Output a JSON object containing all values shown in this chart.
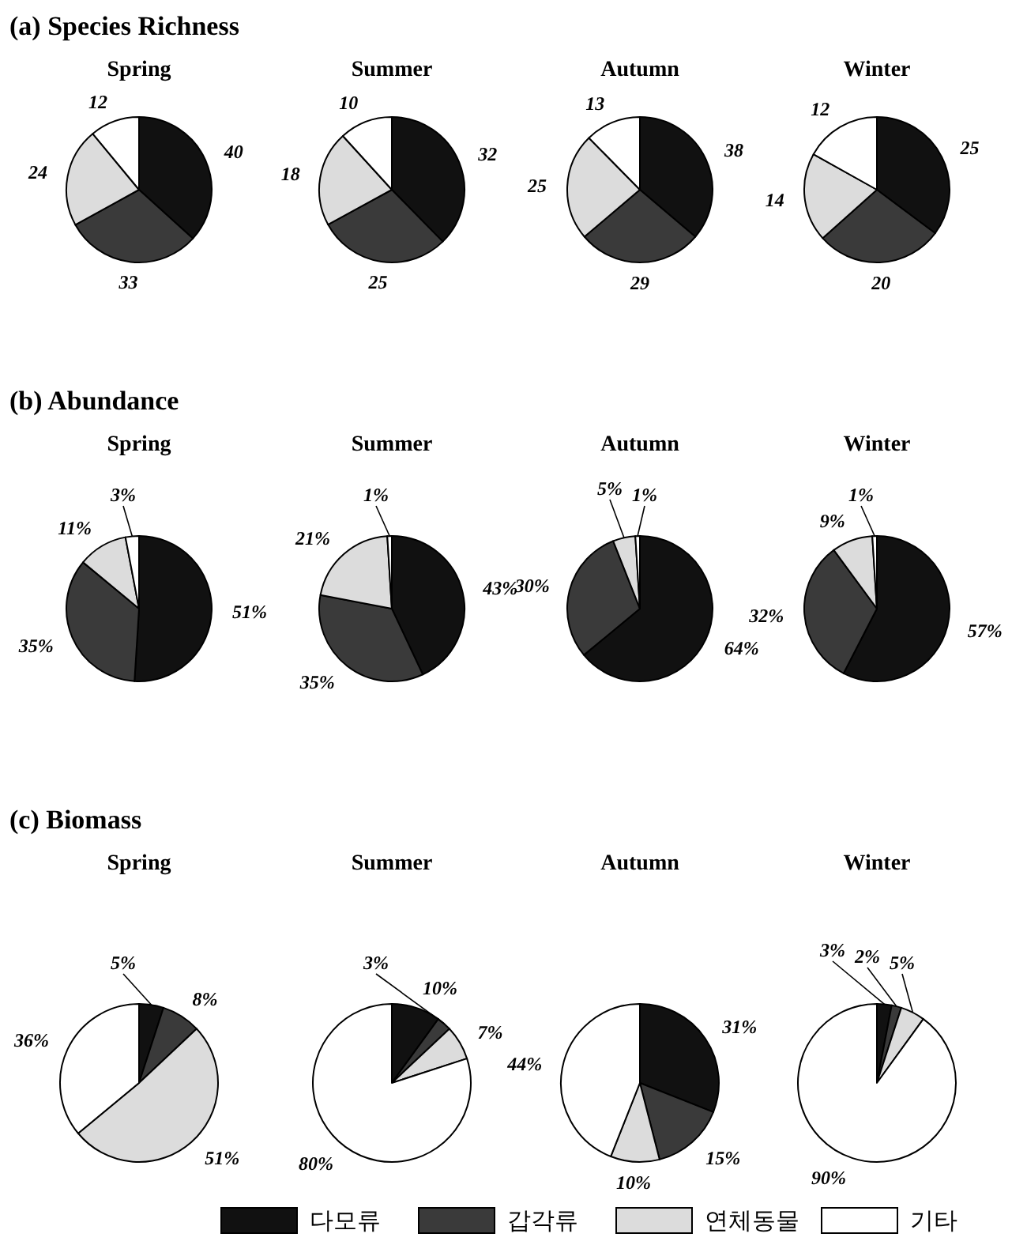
{
  "chart_data": [
    {
      "type": "pie",
      "subtitle": "(a) Species Richness",
      "title": "Spring",
      "values": [
        40,
        33,
        24,
        12
      ],
      "colors": [
        "#111111",
        "#3a3a3a",
        "#dcdcdc",
        "#ffffff"
      ],
      "value_labels": [
        "40",
        "33",
        "24",
        "12"
      ]
    },
    {
      "type": "pie",
      "title": "Summer",
      "values": [
        32,
        25,
        18,
        10
      ],
      "colors": [
        "#111111",
        "#3a3a3a",
        "#dcdcdc",
        "#ffffff"
      ],
      "value_labels": [
        "32",
        "25",
        "18",
        "10"
      ]
    },
    {
      "type": "pie",
      "title": "Autumn",
      "values": [
        38,
        29,
        25,
        13
      ],
      "colors": [
        "#111111",
        "#3a3a3a",
        "#dcdcdc",
        "#ffffff"
      ],
      "value_labels": [
        "38",
        "29",
        "25",
        "13"
      ]
    },
    {
      "type": "pie",
      "title": "Winter",
      "values": [
        25,
        20,
        14,
        12
      ],
      "colors": [
        "#111111",
        "#3a3a3a",
        "#dcdcdc",
        "#ffffff"
      ],
      "value_labels": [
        "25",
        "20",
        "14",
        "12"
      ]
    },
    {
      "type": "pie",
      "subtitle": "(b) Abundance",
      "title": "Spring",
      "values": [
        51,
        35,
        11,
        3
      ],
      "colors": [
        "#111111",
        "#3a3a3a",
        "#dcdcdc",
        "#ffffff"
      ],
      "value_labels": [
        "51%",
        "35%",
        "11%",
        "3%"
      ]
    },
    {
      "type": "pie",
      "title": "Summer",
      "values": [
        43,
        35,
        21,
        1
      ],
      "colors": [
        "#111111",
        "#3a3a3a",
        "#dcdcdc",
        "#ffffff"
      ],
      "value_labels": [
        "43%",
        "35%",
        "21%",
        "1%"
      ]
    },
    {
      "type": "pie",
      "title": "Autumn",
      "values": [
        64,
        30,
        5,
        1
      ],
      "colors": [
        "#111111",
        "#3a3a3a",
        "#dcdcdc",
        "#ffffff"
      ],
      "value_labels": [
        "64%",
        "30%",
        "5%",
        "1%"
      ]
    },
    {
      "type": "pie",
      "title": "Winter",
      "values": [
        57,
        32,
        9,
        1
      ],
      "colors": [
        "#111111",
        "#3a3a3a",
        "#dcdcdc",
        "#ffffff"
      ],
      "value_labels": [
        "57%",
        "32%",
        "9%",
        "1%"
      ]
    },
    {
      "type": "pie",
      "subtitle": "(c) Biomass",
      "title": "Spring",
      "values": [
        5,
        8,
        51,
        36
      ],
      "colors": [
        "#111111",
        "#3a3a3a",
        "#dcdcdc",
        "#ffffff"
      ],
      "value_labels": [
        "5%",
        "8%",
        "51%",
        "36%"
      ]
    },
    {
      "type": "pie",
      "title": "Summer",
      "values": [
        10,
        3,
        7,
        80
      ],
      "colors": [
        "#111111",
        "#3a3a3a",
        "#dcdcdc",
        "#ffffff"
      ],
      "value_labels": [
        "10%",
        "3%",
        "7%",
        "80%"
      ]
    },
    {
      "type": "pie",
      "title": "Autumn",
      "values": [
        31,
        15,
        10,
        44
      ],
      "colors": [
        "#111111",
        "#3a3a3a",
        "#dcdcdc",
        "#ffffff"
      ],
      "value_labels": [
        "31%",
        "15%",
        "10%",
        "44%"
      ]
    },
    {
      "type": "pie",
      "title": "Winter",
      "categories": [
        "다모류",
        "갑각류",
        "연체동물",
        "기타"
      ],
      "values": [
        3,
        2,
        5,
        90
      ],
      "colors": [
        "#111111",
        "#3a3a3a",
        "#dcdcdc",
        "#ffffff"
      ],
      "value_labels": [
        "3%",
        "2%",
        "5%",
        "90%"
      ],
      "legend": "bottom"
    }
  ]
}
